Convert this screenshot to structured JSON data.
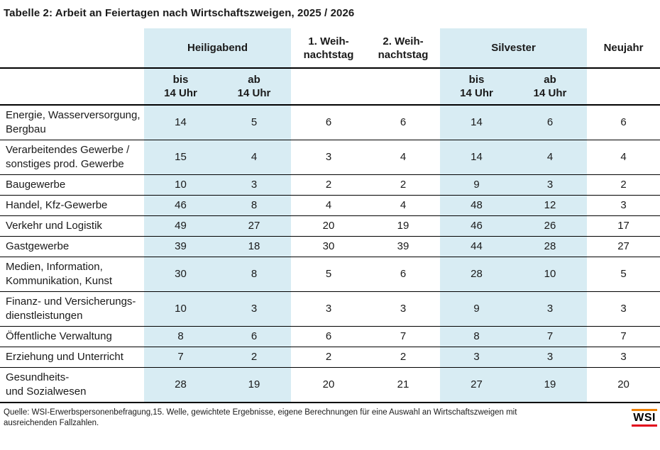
{
  "page": {
    "title": "Tabelle 2: Arbeit an Feiertagen nach Wirtschaftszweigen, 2025 / 2026"
  },
  "colors": {
    "highlight_blue": "#d8ecf3",
    "text": "#1a1a1a",
    "logo_orange": "#ee7f00",
    "logo_red": "#e2001a"
  },
  "table": {
    "group_headers": [
      {
        "label": "Heiligabend",
        "span": 2,
        "highlight": true
      },
      {
        "label": "1. Weih-\nnachtstag",
        "span": 1,
        "highlight": false
      },
      {
        "label": "2. Weih-\nnachtstag",
        "span": 1,
        "highlight": false
      },
      {
        "label": "Silvester",
        "span": 2,
        "highlight": true
      },
      {
        "label": "Neujahr",
        "span": 1,
        "highlight": false
      }
    ],
    "sub_headers": [
      {
        "label": "bis\n14 Uhr",
        "highlight": true
      },
      {
        "label": "ab\n14 Uhr",
        "highlight": true
      },
      {
        "label": "",
        "highlight": false
      },
      {
        "label": "",
        "highlight": false
      },
      {
        "label": "bis\n14 Uhr",
        "highlight": true
      },
      {
        "label": "ab\n14 Uhr",
        "highlight": true
      },
      {
        "label": "",
        "highlight": false
      }
    ],
    "highlight_columns": [
      true,
      true,
      false,
      false,
      true,
      true,
      false
    ],
    "rows": [
      {
        "label": "Energie, Wasserversorgung,\nBergbau",
        "values": [
          14,
          5,
          6,
          6,
          14,
          6,
          6
        ]
      },
      {
        "label": "Verarbeitendes Gewerbe /\nsonstiges prod. Gewerbe",
        "values": [
          15,
          4,
          3,
          4,
          14,
          4,
          4
        ]
      },
      {
        "label": "Baugewerbe",
        "values": [
          10,
          3,
          2,
          2,
          9,
          3,
          2
        ]
      },
      {
        "label": "Handel, Kfz-Gewerbe",
        "values": [
          46,
          8,
          4,
          4,
          48,
          12,
          3
        ]
      },
      {
        "label": "Verkehr und Logistik",
        "values": [
          49,
          27,
          20,
          19,
          46,
          26,
          17
        ]
      },
      {
        "label": "Gastgewerbe",
        "values": [
          39,
          18,
          30,
          39,
          44,
          28,
          27
        ]
      },
      {
        "label": "Medien, Information,\nKommunikation, Kunst",
        "values": [
          30,
          8,
          5,
          6,
          28,
          10,
          5
        ]
      },
      {
        "label": "Finanz- und Versicherungs-\ndienstleistungen",
        "values": [
          10,
          3,
          3,
          3,
          9,
          3,
          3
        ]
      },
      {
        "label": "Öffentliche Verwaltung",
        "values": [
          8,
          6,
          6,
          7,
          8,
          7,
          7
        ]
      },
      {
        "label": "Erziehung und Unterricht",
        "values": [
          7,
          2,
          2,
          2,
          3,
          3,
          3
        ]
      },
      {
        "label": "Gesundheits-\nund Sozialwesen",
        "values": [
          28,
          19,
          20,
          21,
          27,
          19,
          20
        ]
      }
    ]
  },
  "footer": {
    "source": "Quelle: WSI-Erwerbspersonenbefragung,15. Welle, gewichtete Ergebnisse, eigene Berechnungen für eine Auswahl an Wirtschaftszweigen mit ausreichenden Fallzahlen.",
    "logo_text": "WSI"
  }
}
